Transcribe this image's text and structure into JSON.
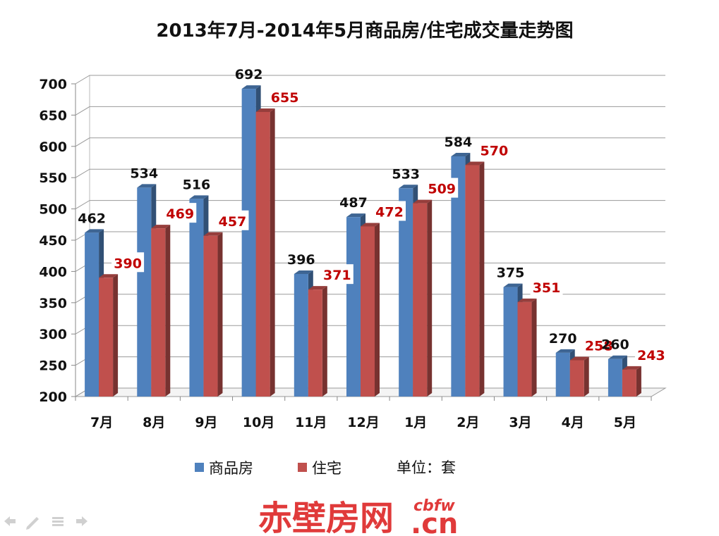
{
  "chart_data": {
    "type": "bar",
    "title": "2013年7月-2014年5月商品房/住宅成交量走势图",
    "categories": [
      "7月",
      "8月",
      "9月",
      "10月",
      "11月",
      "12月",
      "1月",
      "2月",
      "3月",
      "4月",
      "5月"
    ],
    "series": [
      {
        "name": "商品房",
        "values": [
          462,
          534,
          516,
          692,
          396,
          487,
          533,
          584,
          375,
          270,
          260
        ],
        "color": "#4f81bd"
      },
      {
        "name": "住宅",
        "values": [
          390,
          469,
          457,
          655,
          371,
          472,
          509,
          570,
          351,
          258,
          243
        ],
        "color": "#c0504d"
      }
    ],
    "ylim": [
      200,
      700
    ],
    "yticks": [
      "200",
      "250",
      "300",
      "350",
      "400",
      "450",
      "500",
      "550",
      "600",
      "650",
      "700"
    ],
    "grid": true,
    "legend_position": "bottom",
    "unit_label": "单位：套",
    "style": "3d-clustered-column"
  },
  "watermark": {
    "brand": "赤壁房网",
    "domain_top": "cbfw",
    "domain_bottom": ".cn",
    "color": "#e03a3a"
  },
  "nav_icons": [
    "prev-arrow-icon",
    "pen-icon",
    "menu-icon",
    "next-arrow-icon"
  ]
}
